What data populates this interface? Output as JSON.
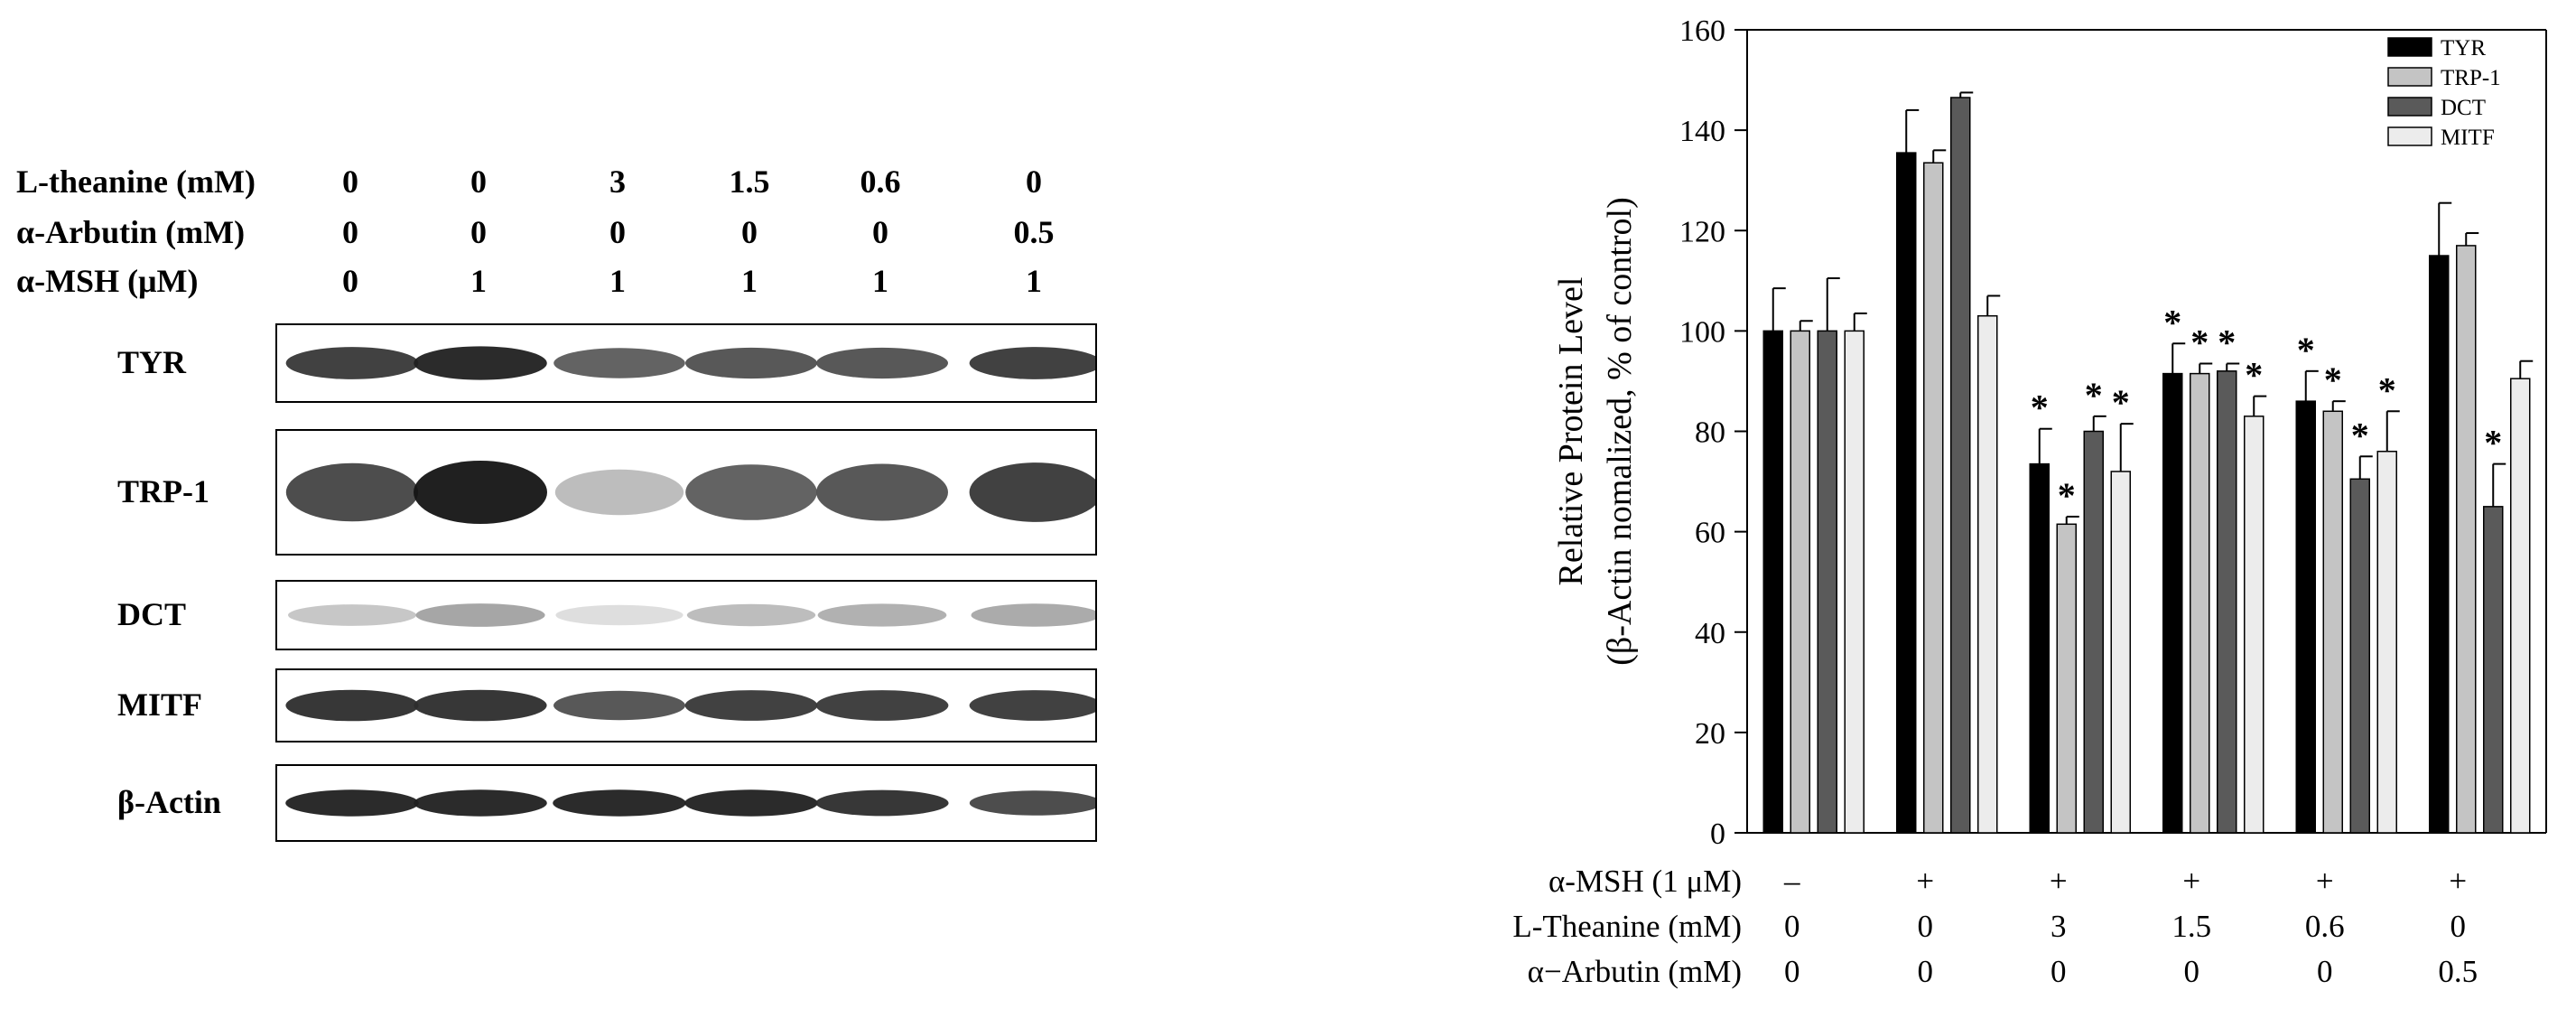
{
  "western_blot": {
    "treatment_rows": [
      {
        "label": "L-theanine (mM)",
        "values": [
          "0",
          "0",
          "3",
          "1.5",
          "0.6",
          "0"
        ]
      },
      {
        "label": "α-Arbutin (mM)",
        "values": [
          "0",
          "0",
          "0",
          "0",
          "0",
          "0.5"
        ]
      },
      {
        "label": "α-MSH (μM)",
        "values": [
          "0",
          "1",
          "1",
          "1",
          "1",
          "1"
        ]
      }
    ],
    "proteins": [
      {
        "label": "TYR",
        "intensity": [
          0.85,
          0.95,
          0.7,
          0.75,
          0.75,
          0.85
        ]
      },
      {
        "label": "TRP-1",
        "intensity": [
          0.8,
          1.0,
          0.3,
          0.7,
          0.75,
          0.85
        ]
      },
      {
        "label": "DCT",
        "intensity": [
          0.25,
          0.4,
          0.15,
          0.3,
          0.35,
          0.38
        ]
      },
      {
        "label": "MITF",
        "intensity": [
          0.9,
          0.9,
          0.75,
          0.85,
          0.85,
          0.85
        ]
      },
      {
        "label": "β-Actin",
        "intensity": [
          0.95,
          0.95,
          0.95,
          0.95,
          0.9,
          0.8
        ]
      }
    ]
  },
  "chart_data": {
    "type": "bar",
    "ylabel_line1": "Relative Protein Level",
    "ylabel_line2": "(β-Actin nomalized, % of control)",
    "ylim": [
      0,
      160
    ],
    "yticks": [
      0,
      20,
      40,
      60,
      80,
      100,
      120,
      140,
      160
    ],
    "groups": 6,
    "legend_position": "top-right",
    "series": [
      {
        "name": "TYR",
        "color": "#000000",
        "values": [
          100,
          135.5,
          73.5,
          91.5,
          86,
          115
        ],
        "errors": [
          8.5,
          8.5,
          7,
          6,
          6,
          10.5
        ],
        "sig": [
          false,
          false,
          true,
          true,
          true,
          false
        ]
      },
      {
        "name": "TRP-1",
        "color": "#c4c4c4",
        "values": [
          100,
          133.5,
          61.5,
          91.5,
          84,
          117
        ],
        "errors": [
          2,
          2.5,
          1.5,
          2,
          2,
          2.5
        ],
        "sig": [
          false,
          false,
          true,
          true,
          true,
          false
        ]
      },
      {
        "name": "DCT",
        "color": "#5a5a5a",
        "values": [
          100,
          146.5,
          80,
          92,
          70.5,
          65
        ],
        "errors": [
          10.5,
          1,
          3,
          1.5,
          4.5,
          8.5
        ],
        "sig": [
          false,
          false,
          true,
          true,
          true,
          true
        ]
      },
      {
        "name": "MITF",
        "color": "#ececec",
        "values": [
          100,
          103,
          72,
          83,
          76,
          90.5
        ],
        "errors": [
          3.5,
          4,
          9.5,
          4,
          8,
          3.5
        ],
        "sig": [
          false,
          false,
          true,
          true,
          true,
          false
        ]
      }
    ],
    "significance_mark": "*",
    "condition_rows": [
      {
        "label": "α-MSH (1 μM)",
        "values": [
          "–",
          "+",
          "+",
          "+",
          "+",
          "+"
        ]
      },
      {
        "label": "L-Theanine (mM)",
        "values": [
          "0",
          "0",
          "3",
          "1.5",
          "0.6",
          "0"
        ]
      },
      {
        "label": "α−Arbutin (mM)",
        "values": [
          "0",
          "0",
          "0",
          "0",
          "0",
          "0.5"
        ]
      }
    ]
  }
}
